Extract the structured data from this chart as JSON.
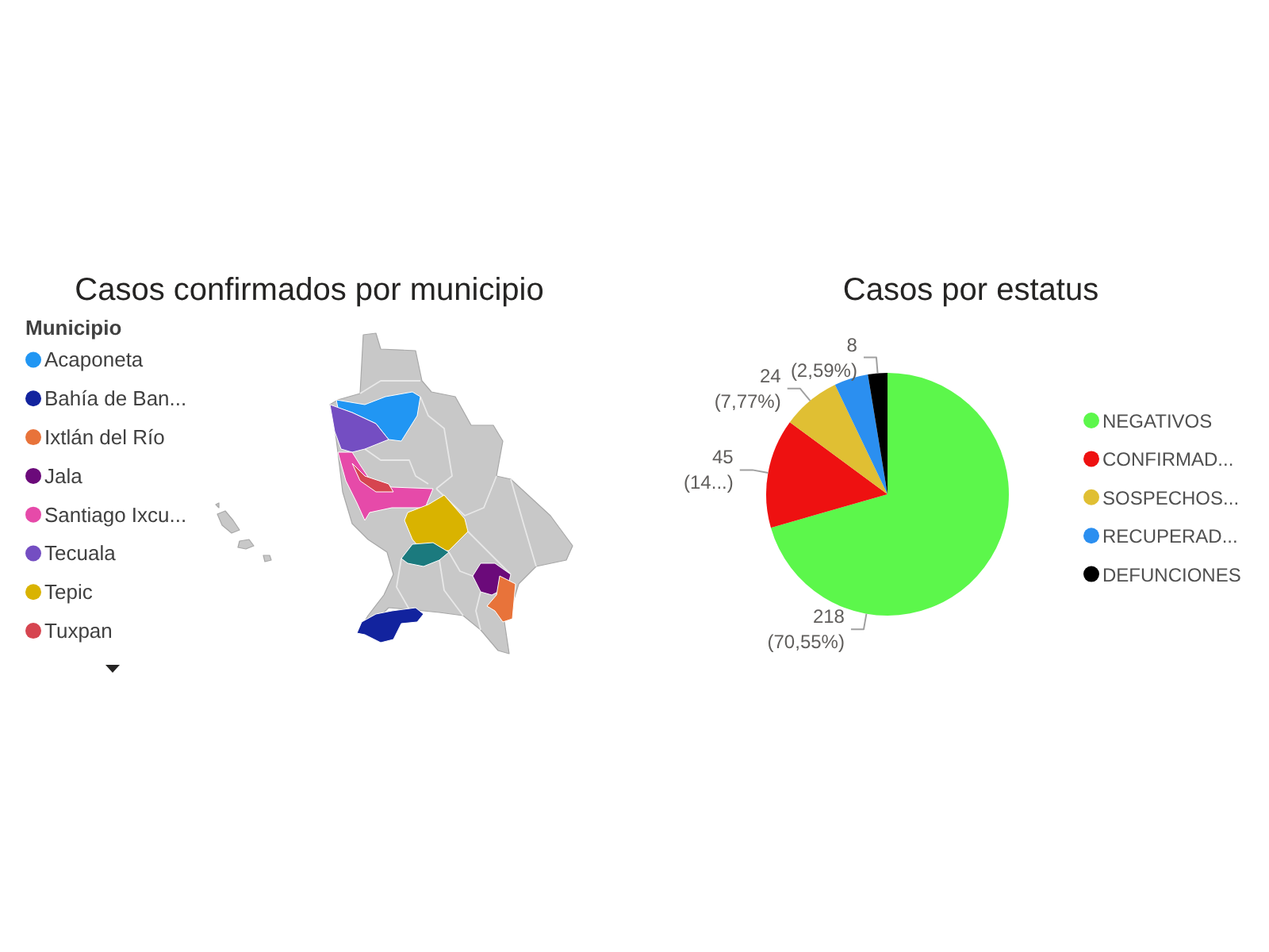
{
  "chart_data": [
    {
      "type": "other",
      "title": "Casos confirmados por municipio",
      "legend_title": "Municipio",
      "categories": [
        "Acaponeta",
        "Bahía de Ban...",
        "Ixtlán del Río",
        "Jala",
        "Santiago Ixcu...",
        "Tecuala",
        "Tepic",
        "Tuxpan"
      ],
      "colors": [
        "#2196f3",
        "#12239e",
        "#e8733a",
        "#6b0a7a",
        "#e64aa9",
        "#744ec2",
        "#d9b300",
        "#d64550"
      ]
    },
    {
      "type": "pie",
      "title": "Casos por estatus",
      "categories": [
        "NEGATIVOS",
        "CONFIRMAD...",
        "SOSPECHOS...",
        "RECUPERAD...",
        "DEFUNCIONES"
      ],
      "values": [
        218,
        45,
        24,
        14,
        8
      ],
      "colors": [
        "#5cf74b",
        "#ee1111",
        "#e0bf33",
        "#2b8ff0",
        "#000000"
      ],
      "value_labels": [
        "218 (70,55%)",
        "45 (14...)",
        "24 (7,77%)",
        null,
        "8 (2,59%)"
      ],
      "legend": "right"
    }
  ]
}
